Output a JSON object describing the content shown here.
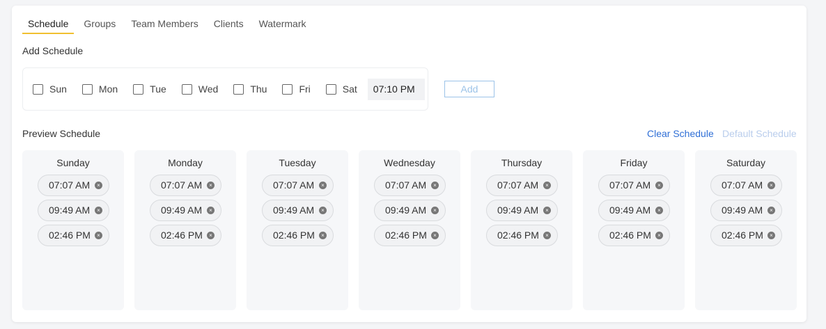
{
  "tabs": [
    "Schedule",
    "Groups",
    "Team Members",
    "Clients",
    "Watermark"
  ],
  "active_tab": "Schedule",
  "add_schedule": {
    "title": "Add Schedule",
    "days": [
      "Sun",
      "Mon",
      "Tue",
      "Wed",
      "Thu",
      "Fri",
      "Sat"
    ],
    "checked": [
      false,
      false,
      false,
      false,
      false,
      false,
      false
    ],
    "time": "07:10 PM",
    "add_label": "Add"
  },
  "preview": {
    "title": "Preview Schedule",
    "clear_label": "Clear Schedule",
    "default_label": "Default Schedule",
    "columns": [
      {
        "day": "Sunday",
        "times": [
          "07:07 AM",
          "09:49 AM",
          "02:46 PM"
        ]
      },
      {
        "day": "Monday",
        "times": [
          "07:07 AM",
          "09:49 AM",
          "02:46 PM"
        ]
      },
      {
        "day": "Tuesday",
        "times": [
          "07:07 AM",
          "09:49 AM",
          "02:46 PM"
        ]
      },
      {
        "day": "Wednesday",
        "times": [
          "07:07 AM",
          "09:49 AM",
          "02:46 PM"
        ]
      },
      {
        "day": "Thursday",
        "times": [
          "07:07 AM",
          "09:49 AM",
          "02:46 PM"
        ]
      },
      {
        "day": "Friday",
        "times": [
          "07:07 AM",
          "09:49 AM",
          "02:46 PM"
        ]
      },
      {
        "day": "Saturday",
        "times": [
          "07:07 AM",
          "09:49 AM",
          "02:46 PM"
        ]
      }
    ]
  },
  "colors": {
    "tab_underline": "#f0c030",
    "link": "#2f6fd6",
    "link_disabled": "#b9cdec"
  }
}
